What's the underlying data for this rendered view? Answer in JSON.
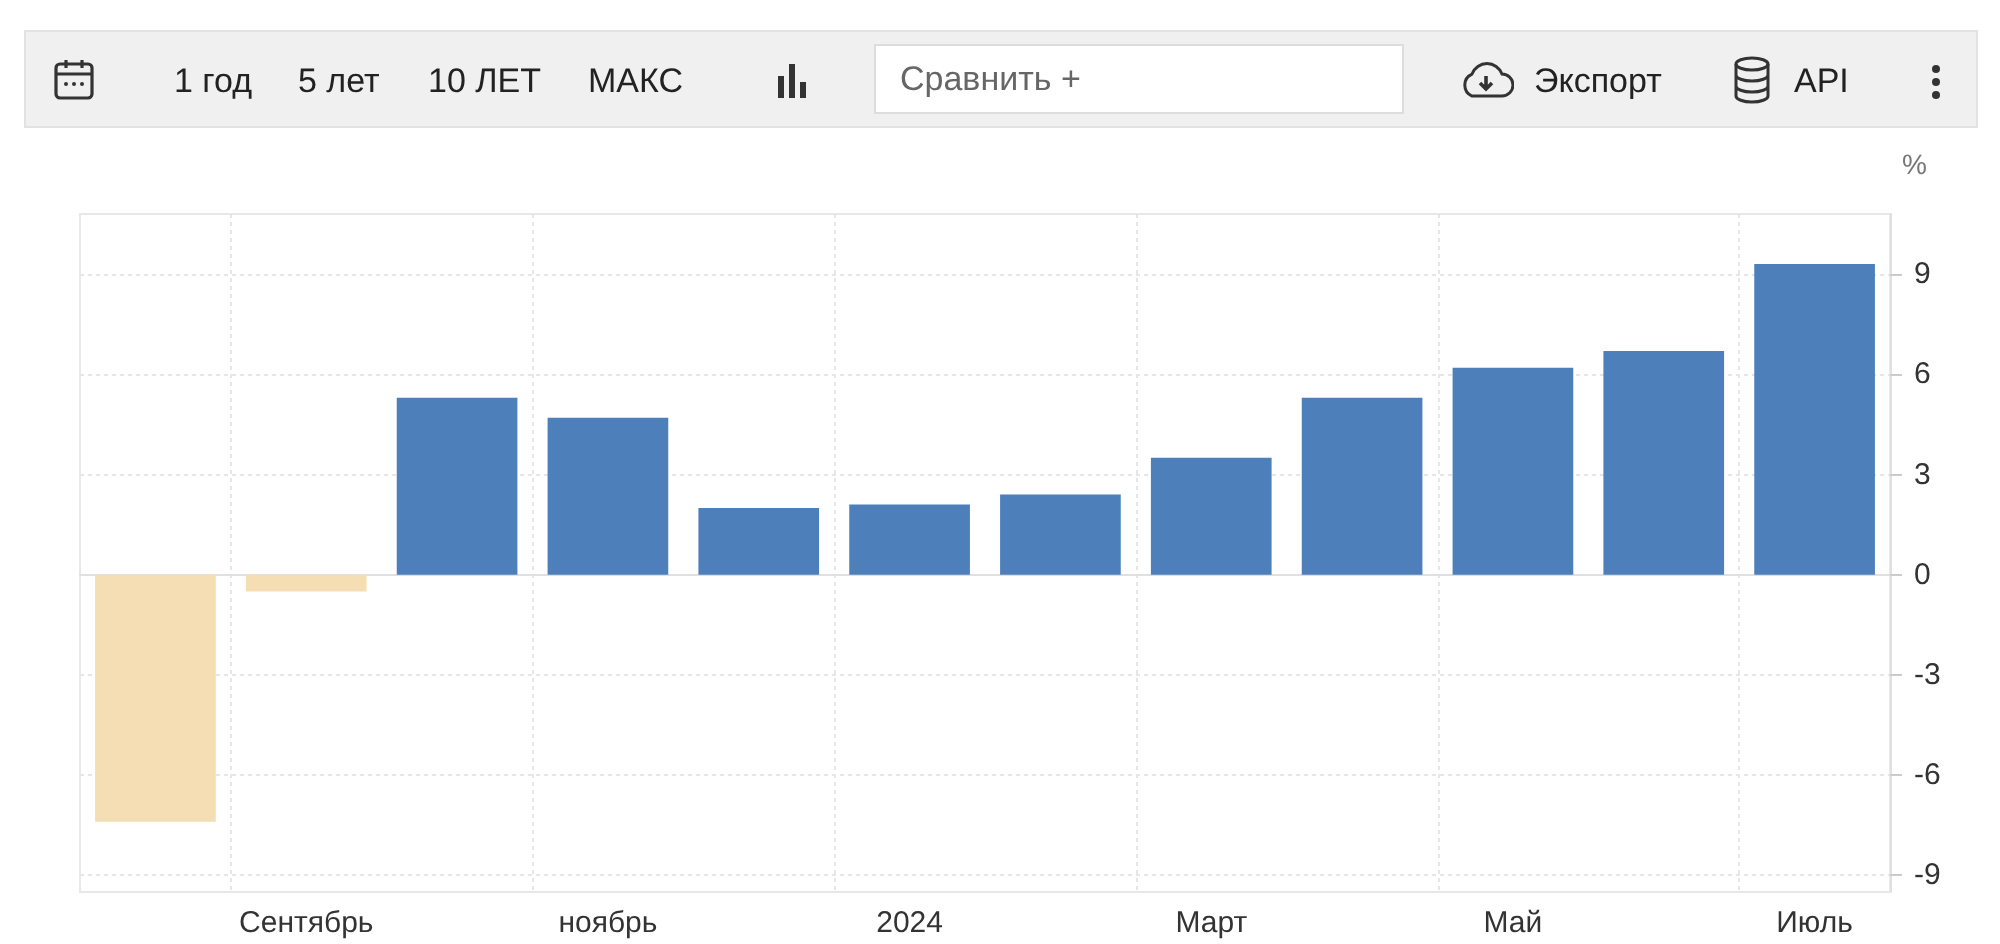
{
  "chart_data": {
    "type": "bar",
    "ylabel": "%",
    "categories": [
      null,
      "Сентябрь",
      null,
      "ноябрь",
      null,
      "2024",
      null,
      "Март",
      null,
      "Май",
      null,
      "Июль"
    ],
    "values": [
      -7.4,
      -0.5,
      5.3,
      4.7,
      2.0,
      2.1,
      2.4,
      3.5,
      5.3,
      6.2,
      6.7,
      9.3
    ],
    "colors": [
      "#f5deb3",
      "#f5deb3",
      "#4d7fbb",
      "#4d7fbb",
      "#4d7fbb",
      "#4d7fbb",
      "#4d7fbb",
      "#4d7fbb",
      "#4d7fbb",
      "#4d7fbb",
      "#4d7fbb",
      "#4d7fbb"
    ],
    "ylim": [
      -9.5,
      10.8
    ],
    "yticks": [
      -9,
      -6,
      -3,
      0,
      3,
      6,
      9
    ],
    "grid": true,
    "annotations": [
      "1 год",
      "5 лет",
      "10 ЛЕТ",
      "МАКС",
      "Сравнить +",
      "Экспорт",
      "API"
    ]
  }
}
